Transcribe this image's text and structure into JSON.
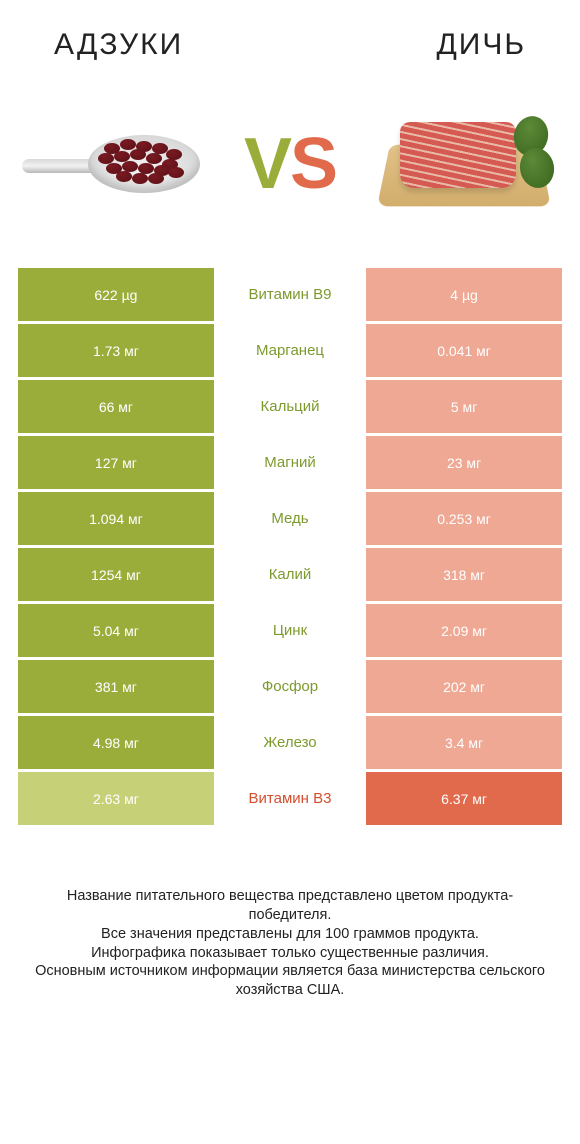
{
  "colors": {
    "left_win": "#9aad3a",
    "left_lose": "#c5d077",
    "right_win": "#e06a4b",
    "right_lose": "#eea893",
    "mid_left": "#7d9a2e",
    "mid_right": "#d24f2e",
    "bean": "#7a1a22",
    "bean_dark": "#5a0f16",
    "meat": "#d55a52",
    "meat_stripe": "#e9b9a8",
    "leaf": "#3f6b22"
  },
  "titles": {
    "left": "АДЗУКИ",
    "right": "ДИЧЬ"
  },
  "vs": {
    "v": "V",
    "s": "S"
  },
  "rows": [
    {
      "left": "622 µg",
      "mid": "Витамин B9",
      "right": "4 µg",
      "winner": "left"
    },
    {
      "left": "1.73 мг",
      "mid": "Марганец",
      "right": "0.041 мг",
      "winner": "left"
    },
    {
      "left": "66 мг",
      "mid": "Кальций",
      "right": "5 мг",
      "winner": "left"
    },
    {
      "left": "127 мг",
      "mid": "Магний",
      "right": "23 мг",
      "winner": "left"
    },
    {
      "left": "1.094 мг",
      "mid": "Медь",
      "right": "0.253 мг",
      "winner": "left"
    },
    {
      "left": "1254 мг",
      "mid": "Калий",
      "right": "318 мг",
      "winner": "left"
    },
    {
      "left": "5.04 мг",
      "mid": "Цинк",
      "right": "2.09 мг",
      "winner": "left"
    },
    {
      "left": "381 мг",
      "mid": "Фосфор",
      "right": "202 мг",
      "winner": "left"
    },
    {
      "left": "4.98 мг",
      "mid": "Железо",
      "right": "3.4 мг",
      "winner": "left"
    },
    {
      "left": "2.63 мг",
      "mid": "Витамин B3",
      "right": "6.37 мг",
      "winner": "right"
    }
  ],
  "footer": {
    "l1": "Название питательного вещества представлено цветом продукта-победителя.",
    "l2": "Все значения представлены для 100 граммов продукта.",
    "l3": "Инфографика показывает только существенные различия.",
    "l4": "Основным источником информации является база министерства сельского хозяйства США."
  },
  "beans": [
    {
      "l": 78,
      "t": 14
    },
    {
      "l": 94,
      "t": 10
    },
    {
      "l": 110,
      "t": 12
    },
    {
      "l": 126,
      "t": 14
    },
    {
      "l": 140,
      "t": 20
    },
    {
      "l": 72,
      "t": 24
    },
    {
      "l": 88,
      "t": 22
    },
    {
      "l": 104,
      "t": 20
    },
    {
      "l": 120,
      "t": 24
    },
    {
      "l": 136,
      "t": 30
    },
    {
      "l": 80,
      "t": 34
    },
    {
      "l": 96,
      "t": 32
    },
    {
      "l": 112,
      "t": 34
    },
    {
      "l": 128,
      "t": 36
    },
    {
      "l": 142,
      "t": 38
    },
    {
      "l": 90,
      "t": 42
    },
    {
      "l": 106,
      "t": 44
    },
    {
      "l": 122,
      "t": 44
    }
  ]
}
